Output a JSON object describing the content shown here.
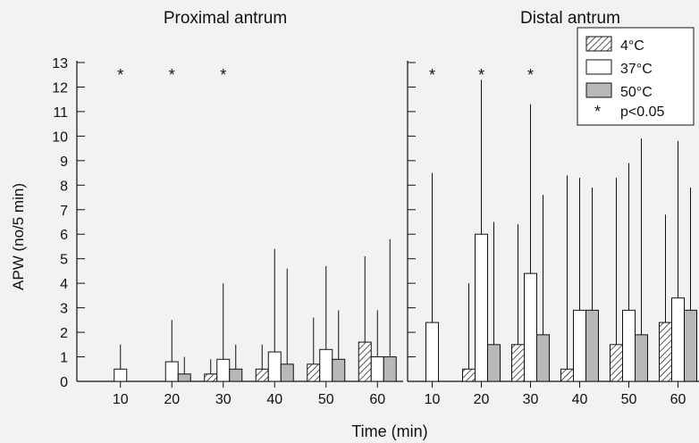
{
  "chart_data": [
    {
      "type": "bar",
      "panel": "left",
      "title": "Proximal antrum",
      "categories": [
        "10",
        "20",
        "30",
        "40",
        "50",
        "60"
      ],
      "series": [
        {
          "name": "4°C",
          "values": [
            0,
            0,
            0.3,
            0.5,
            0.7,
            1.6
          ],
          "error_upper": [
            0,
            0,
            0.9,
            1.5,
            2.6,
            5.1
          ]
        },
        {
          "name": "37°C",
          "values": [
            0.5,
            0.8,
            0.9,
            1.2,
            1.3,
            1.0
          ],
          "error_upper": [
            1.5,
            2.5,
            4.0,
            5.4,
            4.7,
            2.9
          ]
        },
        {
          "name": "50°C",
          "values": [
            0,
            0.3,
            0.5,
            0.7,
            0.9,
            1.0
          ],
          "error_upper": [
            0,
            1.0,
            1.5,
            4.6,
            2.9,
            5.8
          ]
        }
      ],
      "significance": [
        "*",
        "*",
        "*",
        "",
        "",
        ""
      ],
      "ylabel": "APW (no/5 min)",
      "ylim": [
        0,
        13
      ],
      "yticks": [
        "0",
        "1",
        "2",
        "3",
        "4",
        "5",
        "6",
        "7",
        "8",
        "9",
        "10",
        "11",
        "12",
        "13"
      ]
    },
    {
      "type": "bar",
      "panel": "right",
      "title": "Distal antrum",
      "categories": [
        "10",
        "20",
        "30",
        "40",
        "50",
        "60"
      ],
      "series": [
        {
          "name": "4°C",
          "values": [
            0,
            0.5,
            1.5,
            0.5,
            1.5,
            2.4
          ],
          "error_upper": [
            0,
            4.0,
            6.4,
            8.4,
            8.3,
            6.8
          ]
        },
        {
          "name": "37°C",
          "values": [
            2.4,
            6.0,
            4.4,
            2.9,
            2.9,
            3.4
          ],
          "error_upper": [
            8.5,
            12.3,
            11.3,
            8.3,
            8.9,
            9.8
          ]
        },
        {
          "name": "50°C",
          "values": [
            0,
            1.5,
            1.9,
            2.9,
            1.9,
            2.9
          ],
          "error_upper": [
            0,
            6.5,
            7.6,
            7.9,
            9.9,
            7.9
          ]
        }
      ],
      "significance": [
        "*",
        "*",
        "*",
        "",
        "",
        ""
      ],
      "ylim": [
        0,
        13
      ]
    }
  ],
  "xlabel": "Time (min)",
  "legend": {
    "placement": "top-right",
    "items": [
      {
        "label": "4°C",
        "pattern": "hatched"
      },
      {
        "label": "37°C",
        "pattern": "open"
      },
      {
        "label": "50°C",
        "pattern": "grey"
      },
      {
        "symbol": "*",
        "label": "p<0.05"
      }
    ]
  },
  "colors": {
    "background": "#f2f2f0",
    "ink": "#111111",
    "grey_fill": "#b8b8b8",
    "open_fill": "#ffffff"
  }
}
